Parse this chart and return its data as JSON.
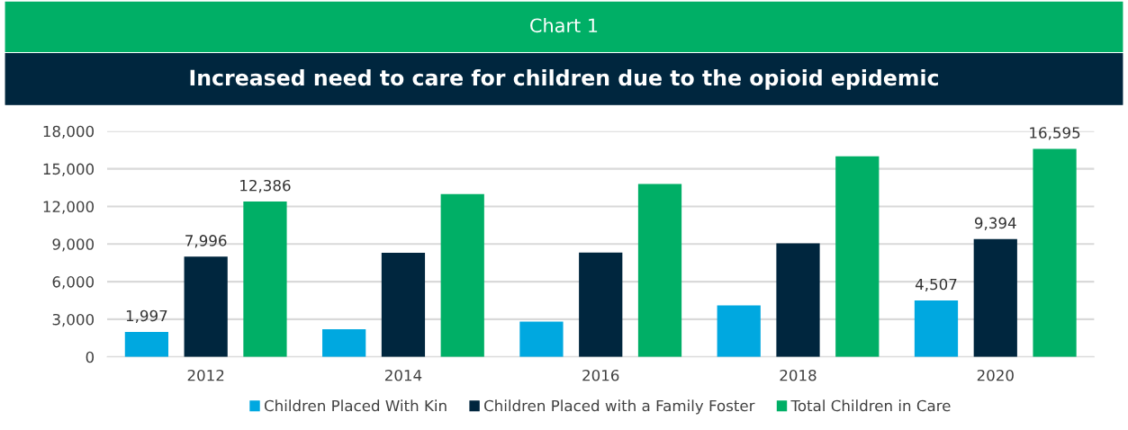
{
  "chart_data": {
    "type": "bar",
    "title": "Chart 1",
    "subtitle": "Increased need to care for children due to the opioid epidemic",
    "categories": [
      "2012",
      "2014",
      "2016",
      "2018",
      "2020"
    ],
    "series": [
      {
        "name": "Children Placed With Kin",
        "color": "#00a8e0",
        "values": [
          1997,
          2200,
          2820,
          4110,
          4507
        ],
        "value_labels": [
          "1,997",
          null,
          null,
          null,
          "4,507"
        ]
      },
      {
        "name": "Children Placed with a Family Foster",
        "color": "#00263e",
        "values": [
          7996,
          8300,
          8320,
          9060,
          9394
        ],
        "value_labels": [
          "7,996",
          null,
          null,
          null,
          "9,394"
        ]
      },
      {
        "name": "Total Children in Care",
        "color": "#00af66",
        "values": [
          12386,
          12980,
          13790,
          15990,
          16595
        ],
        "value_labels": [
          "12,386",
          null,
          null,
          null,
          "16,595"
        ]
      }
    ],
    "ylim": [
      0,
      18000
    ],
    "yticks": [
      {
        "value": 0,
        "label": "0"
      },
      {
        "value": 3000,
        "label": "3,000"
      },
      {
        "value": 6000,
        "label": "6,000"
      },
      {
        "value": 9000,
        "label": "9,000"
      },
      {
        "value": 12000,
        "label": "12,000"
      },
      {
        "value": 15000,
        "label": "15,000"
      },
      {
        "value": 18000,
        "label": "18,000"
      }
    ],
    "grid": "y",
    "legend": "bottom"
  }
}
